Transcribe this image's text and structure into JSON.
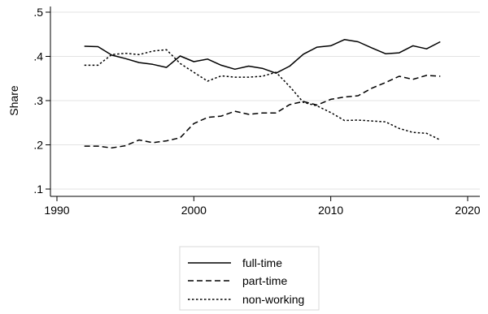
{
  "chart_data": {
    "type": "line",
    "title": "",
    "xlabel": "",
    "ylabel": "Share",
    "xlim": [
      1990,
      2020
    ],
    "ylim": [
      0.1,
      0.5
    ],
    "x_ticks": [
      1990,
      2000,
      2010,
      2020
    ],
    "x_tick_labels": [
      "1990",
      "2000",
      "2010",
      "2020"
    ],
    "y_ticks": [
      0.1,
      0.2,
      0.3,
      0.4,
      0.5
    ],
    "y_tick_labels": [
      ".1",
      ".2",
      ".3",
      ".4",
      ".5"
    ],
    "grid": "horizontal",
    "legend_position": "bottom",
    "x": [
      1992,
      1993,
      1994,
      1995,
      1996,
      1997,
      1998,
      1999,
      2000,
      2001,
      2002,
      2003,
      2004,
      2005,
      2006,
      2007,
      2008,
      2009,
      2010,
      2011,
      2012,
      2013,
      2014,
      2015,
      2016,
      2017,
      2018
    ],
    "series": [
      {
        "name": "full-time",
        "style": "solid",
        "values": [
          0.423,
          0.422,
          0.403,
          0.395,
          0.386,
          0.382,
          0.375,
          0.401,
          0.388,
          0.394,
          0.38,
          0.371,
          0.378,
          0.373,
          0.362,
          0.378,
          0.405,
          0.421,
          0.424,
          0.438,
          0.433,
          0.419,
          0.406,
          0.408,
          0.424,
          0.417,
          0.433
        ]
      },
      {
        "name": "part-time",
        "style": "dashed",
        "values": [
          0.197,
          0.197,
          0.193,
          0.198,
          0.211,
          0.205,
          0.209,
          0.216,
          0.248,
          0.262,
          0.265,
          0.276,
          0.269,
          0.272,
          0.272,
          0.291,
          0.298,
          0.29,
          0.303,
          0.308,
          0.311,
          0.328,
          0.341,
          0.355,
          0.348,
          0.357,
          0.355
        ]
      },
      {
        "name": "non-working",
        "style": "dotted",
        "values": [
          0.38,
          0.38,
          0.404,
          0.407,
          0.404,
          0.412,
          0.415,
          0.384,
          0.364,
          0.344,
          0.356,
          0.353,
          0.353,
          0.355,
          0.364,
          0.332,
          0.296,
          0.288,
          0.273,
          0.255,
          0.256,
          0.254,
          0.252,
          0.237,
          0.228,
          0.226,
          0.211
        ]
      }
    ]
  }
}
